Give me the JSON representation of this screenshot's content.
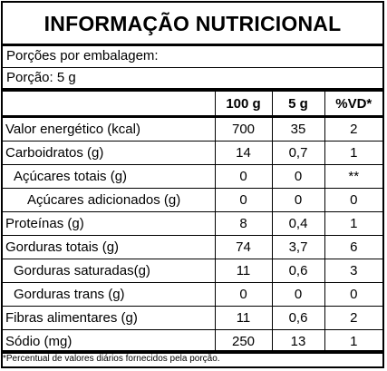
{
  "title": "INFORMAÇÃO NUTRICIONAL",
  "servings_per_package": "Porções por embalagem:",
  "serving_size": "Porção: 5 g",
  "headers": [
    "",
    "100 g",
    "5 g",
    "%VD*"
  ],
  "rows": [
    {
      "label": "Valor energético (kcal)",
      "v100": "700",
      "v5": "35",
      "vd": "2"
    },
    {
      "label": "Carboidratos (g)",
      "v100": "14",
      "v5": "0,7",
      "vd": "1"
    },
    {
      "label": "Açúcares totais (g)",
      "v100": "0",
      "v5": "0",
      "vd": "**"
    },
    {
      "label": "Açúcares adicionados (g)",
      "v100": "0",
      "v5": "0",
      "vd": "0"
    },
    {
      "label": "Proteínas (g)",
      "v100": "8",
      "v5": "0,4",
      "vd": "1"
    },
    {
      "label": "Gorduras totais (g)",
      "v100": "74",
      "v5": "3,7",
      "vd": "6"
    },
    {
      "label": "Gorduras saturadas(g)",
      "v100": "11",
      "v5": "0,6",
      "vd": "3"
    },
    {
      "label": "Gorduras trans (g)",
      "v100": "0",
      "v5": "0",
      "vd": "0"
    },
    {
      "label": "Fibras alimentares (g)",
      "v100": "11",
      "v5": "0,6",
      "vd": "2"
    },
    {
      "label": "Sódio (mg)",
      "v100": "250",
      "v5": "13",
      "vd": "1"
    }
  ],
  "footnote": "*Percentual de valores diários fornecidos pela porção."
}
